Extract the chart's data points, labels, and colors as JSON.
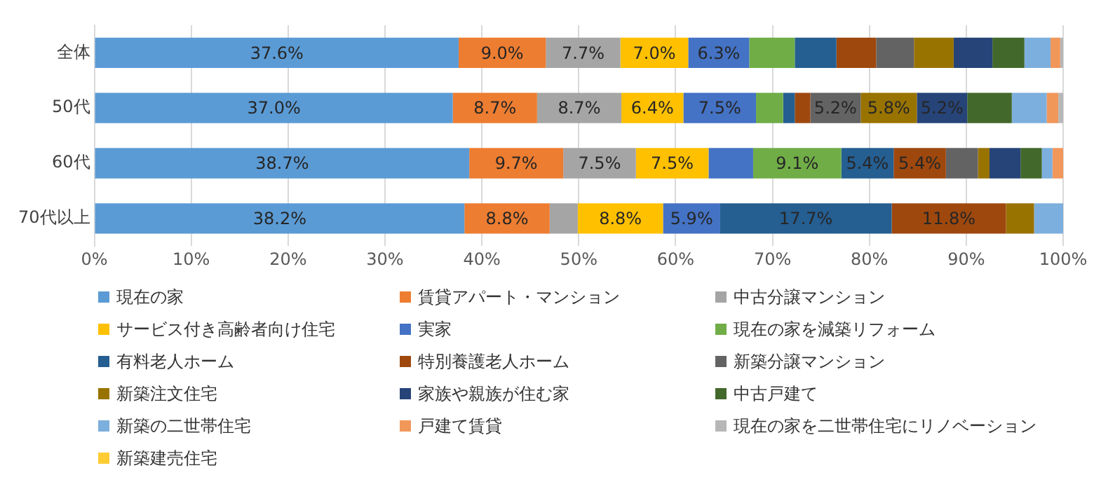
{
  "chart_data": {
    "type": "bar",
    "orientation": "horizontal",
    "stacked": true,
    "categories": [
      "全体",
      "50代",
      "60代",
      "70代以上"
    ],
    "xlim": [
      0,
      100
    ],
    "xticks": [
      {
        "value": 0,
        "label": "0%"
      },
      {
        "value": 10,
        "label": "10%"
      },
      {
        "value": 20,
        "label": "20%"
      },
      {
        "value": 30,
        "label": "30%"
      },
      {
        "value": 40,
        "label": "40%"
      },
      {
        "value": 50,
        "label": "50%"
      },
      {
        "value": 60,
        "label": "60%"
      },
      {
        "value": 70,
        "label": "70%"
      },
      {
        "value": 80,
        "label": "80%"
      },
      {
        "value": 90,
        "label": "90%"
      },
      {
        "value": 100,
        "label": "100%"
      }
    ],
    "grid": "x",
    "legend": "bottom",
    "series": [
      {
        "name": "現在の家",
        "color": "#5b9bd5",
        "values": [
          37.6,
          37.0,
          38.7,
          38.2
        ],
        "value_labels": [
          "37.6%",
          "37.0%",
          "38.7%",
          "38.2%"
        ]
      },
      {
        "name": "賃貸アパート・マンション",
        "color": "#ed7d31",
        "values": [
          9.0,
          8.7,
          9.7,
          8.8
        ],
        "value_labels": [
          "9.0%",
          "8.7%",
          "9.7%",
          "8.8%"
        ]
      },
      {
        "name": "中古分譲マンション",
        "color": "#a5a5a5",
        "values": [
          7.7,
          8.7,
          7.5,
          2.9
        ],
        "value_labels": [
          "7.7%",
          "8.7%",
          "7.5%",
          null
        ]
      },
      {
        "name": "サービス付き高齢者向け住宅",
        "color": "#ffc000",
        "values": [
          7.0,
          6.4,
          7.5,
          8.8
        ],
        "value_labels": [
          "7.0%",
          "6.4%",
          "7.5%",
          "8.8%"
        ]
      },
      {
        "name": "実家",
        "color": "#4472c4",
        "values": [
          6.3,
          7.5,
          4.6,
          5.9
        ],
        "value_labels": [
          "6.3%",
          "7.5%",
          null,
          "5.9%"
        ]
      },
      {
        "name": "現在の家を減築リフォーム",
        "color": "#70ad47",
        "values": [
          4.7,
          2.8,
          9.1,
          0
        ],
        "value_labels": [
          null,
          null,
          "9.1%",
          null
        ]
      },
      {
        "name": "有料老人ホーム",
        "color": "#255e91",
        "values": [
          4.3,
          1.2,
          5.4,
          17.7
        ],
        "value_labels": [
          null,
          null,
          "5.4%",
          "17.7%"
        ]
      },
      {
        "name": "特別養護老人ホーム",
        "color": "#9e480e",
        "values": [
          4.1,
          1.6,
          5.4,
          11.8
        ],
        "value_labels": [
          null,
          null,
          "5.4%",
          "11.8%"
        ]
      },
      {
        "name": "新築分譲マンション",
        "color": "#636363",
        "values": [
          3.9,
          5.2,
          3.3,
          0
        ],
        "value_labels": [
          null,
          "5.2%",
          null,
          null
        ]
      },
      {
        "name": "新築注文住宅",
        "color": "#997300",
        "values": [
          4.1,
          5.8,
          1.2,
          2.9
        ],
        "value_labels": [
          null,
          "5.8%",
          null,
          null
        ]
      },
      {
        "name": "家族や親族が住む家",
        "color": "#264478",
        "values": [
          4.0,
          5.2,
          3.2,
          0
        ],
        "value_labels": [
          null,
          "5.2%",
          null,
          null
        ]
      },
      {
        "name": "中古戸建て",
        "color": "#43682b",
        "values": [
          3.3,
          4.6,
          2.2,
          0
        ]
      },
      {
        "name": "新築の二世帯住宅",
        "color": "#7cafdd",
        "values": [
          2.7,
          3.6,
          1.1,
          3.0
        ]
      },
      {
        "name": "戸建て賃貸",
        "color": "#f1975a",
        "values": [
          1.0,
          1.2,
          1.1,
          0
        ]
      },
      {
        "name": "現在の家を二世帯住宅にリノベーション",
        "color": "#b7b7b7",
        "values": [
          0.3,
          0.5,
          0,
          0
        ]
      },
      {
        "name": "新築建売住宅",
        "color": "#ffcd33",
        "values": [
          0,
          0,
          0,
          0
        ]
      }
    ]
  }
}
